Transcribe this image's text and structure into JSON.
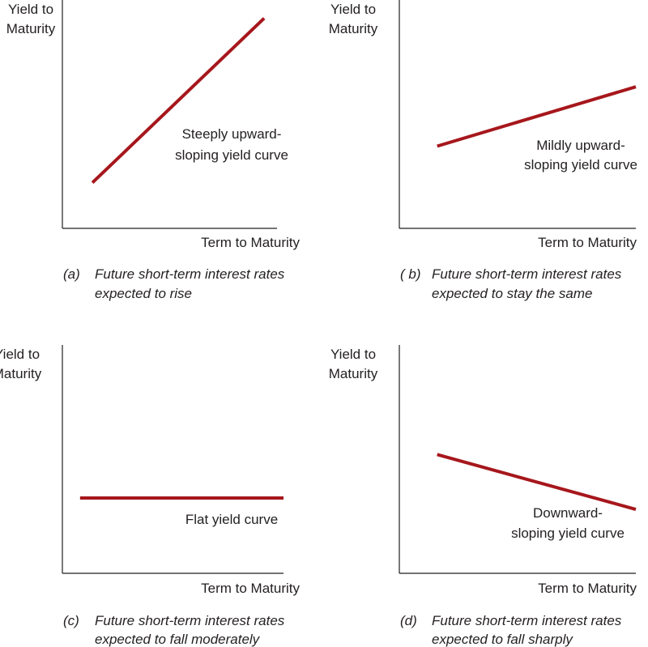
{
  "chart_data": [
    {
      "type": "line",
      "panel": "a",
      "ylabel": [
        "Yield to",
        "Maturity"
      ],
      "xlabel": "Term to Maturity",
      "series": [
        {
          "x": [
            0.14,
            0.94
          ],
          "y": [
            0.2,
            0.92
          ]
        }
      ],
      "annotation": [
        "Steeply upward-",
        "sloping yield curve"
      ],
      "caption_letter": "(a)",
      "caption": [
        "Future short-term interest rates",
        "expected to rise"
      ],
      "color": "#a6171c"
    },
    {
      "type": "line",
      "panel": "b",
      "ylabel": [
        "Yield to",
        "Maturity"
      ],
      "xlabel": "Term to Maturity",
      "series": [
        {
          "x": [
            0.16,
            1.0
          ],
          "y": [
            0.36,
            0.62
          ]
        }
      ],
      "annotation": [
        "Mildly upward-",
        "sloping yield curve"
      ],
      "caption_letter": "( b)",
      "caption": [
        "Future short-term interest rates",
        "expected to stay the same"
      ],
      "color": "#a6171c"
    },
    {
      "type": "line",
      "panel": "c",
      "ylabel": [
        "Yield to",
        "Maturity"
      ],
      "xlabel": "Term to Maturity",
      "series": [
        {
          "x": [
            0.08,
            1.0
          ],
          "y": [
            0.33,
            0.33
          ]
        }
      ],
      "annotation": [
        "Flat yield curve"
      ],
      "caption_letter": "(c)",
      "caption": [
        "Future short-term interest rates",
        "expected to fall moderately"
      ],
      "color": "#a6171c"
    },
    {
      "type": "line",
      "panel": "d",
      "ylabel": [
        "Yield to",
        "Maturity"
      ],
      "xlabel": "Term to Maturity",
      "series": [
        {
          "x": [
            0.16,
            1.0
          ],
          "y": [
            0.52,
            0.28
          ]
        }
      ],
      "annotation": [
        "Downward-",
        "sloping yield curve"
      ],
      "caption_letter": "(d)",
      "caption": [
        "Future short-term interest rates",
        "expected to fall sharply"
      ],
      "color": "#a6171c"
    }
  ]
}
